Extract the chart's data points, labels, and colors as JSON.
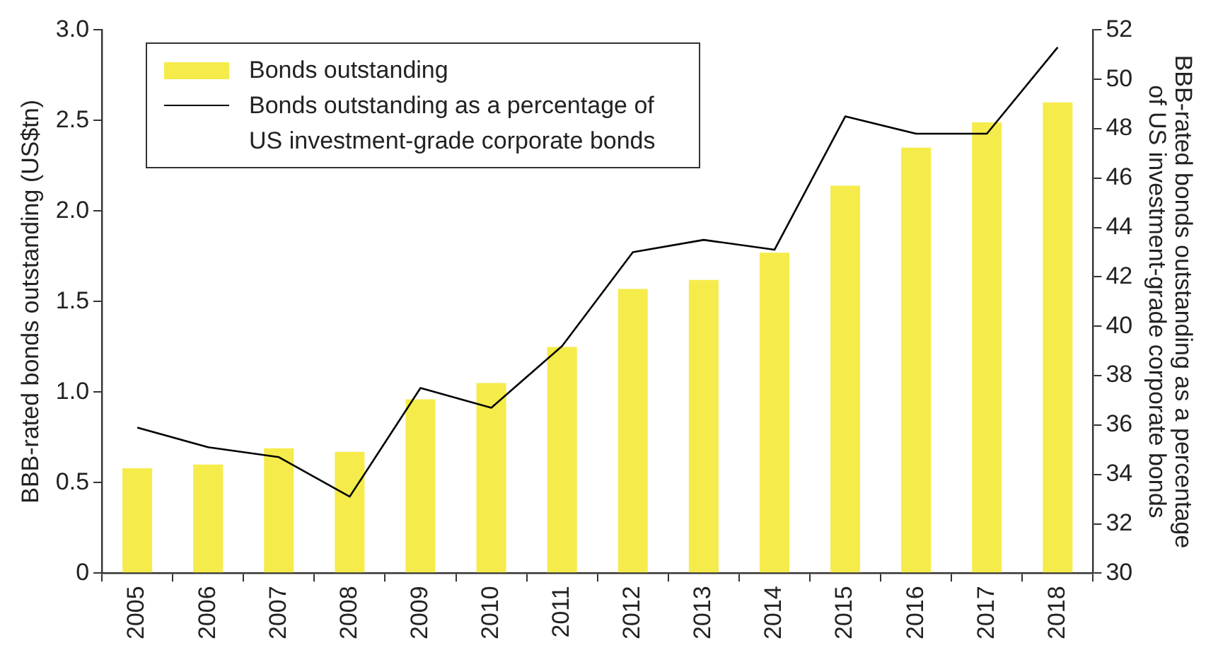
{
  "chart_data": {
    "type": "bar",
    "ylabel": "BBB-rated bonds outstanding (US$tn)",
    "y2label": "BBB-rated bonds outstanding as a percentage of US investment-grade corporate bonds",
    "categories": [
      "2005",
      "2006",
      "2007",
      "2008",
      "2009",
      "2010",
      "2011",
      "2012",
      "2013",
      "2014",
      "2015",
      "2016",
      "2017",
      "2018"
    ],
    "series": [
      {
        "name": "Bonds outstanding",
        "color": "#f5ec4c",
        "values": [
          0.58,
          0.6,
          0.69,
          0.67,
          0.96,
          1.05,
          1.25,
          1.57,
          1.62,
          1.77,
          2.14,
          2.35,
          2.49,
          2.6
        ]
      },
      {
        "name": "Bonds outstanding as a percentage of US investment-grade corporate bonds",
        "type": "line",
        "axis": "y2",
        "color": "#000000",
        "values": [
          35.9,
          35.1,
          34.7,
          33.1,
          37.5,
          36.7,
          39.2,
          43.0,
          43.5,
          43.1,
          48.5,
          47.8,
          47.8,
          51.3
        ]
      }
    ],
    "ylim": [
      0,
      3
    ],
    "yticks": [
      0,
      {
        "value": 0.5,
        "label": "0.5"
      },
      {
        "value": 1,
        "label": "1.0"
      },
      {
        "value": 1.5,
        "label": "1.5"
      },
      {
        "value": 2,
        "label": "2.0"
      },
      {
        "value": 2.5,
        "label": "2.5"
      },
      {
        "value": 3,
        "label": "3.0"
      }
    ],
    "y2lim": [
      30,
      52
    ],
    "y2ticks": [
      30,
      32,
      34,
      36,
      38,
      40,
      42,
      44,
      46,
      48,
      50,
      52
    ],
    "grid": false,
    "legend": "top left",
    "marker": "none",
    "line_style": "solid"
  }
}
